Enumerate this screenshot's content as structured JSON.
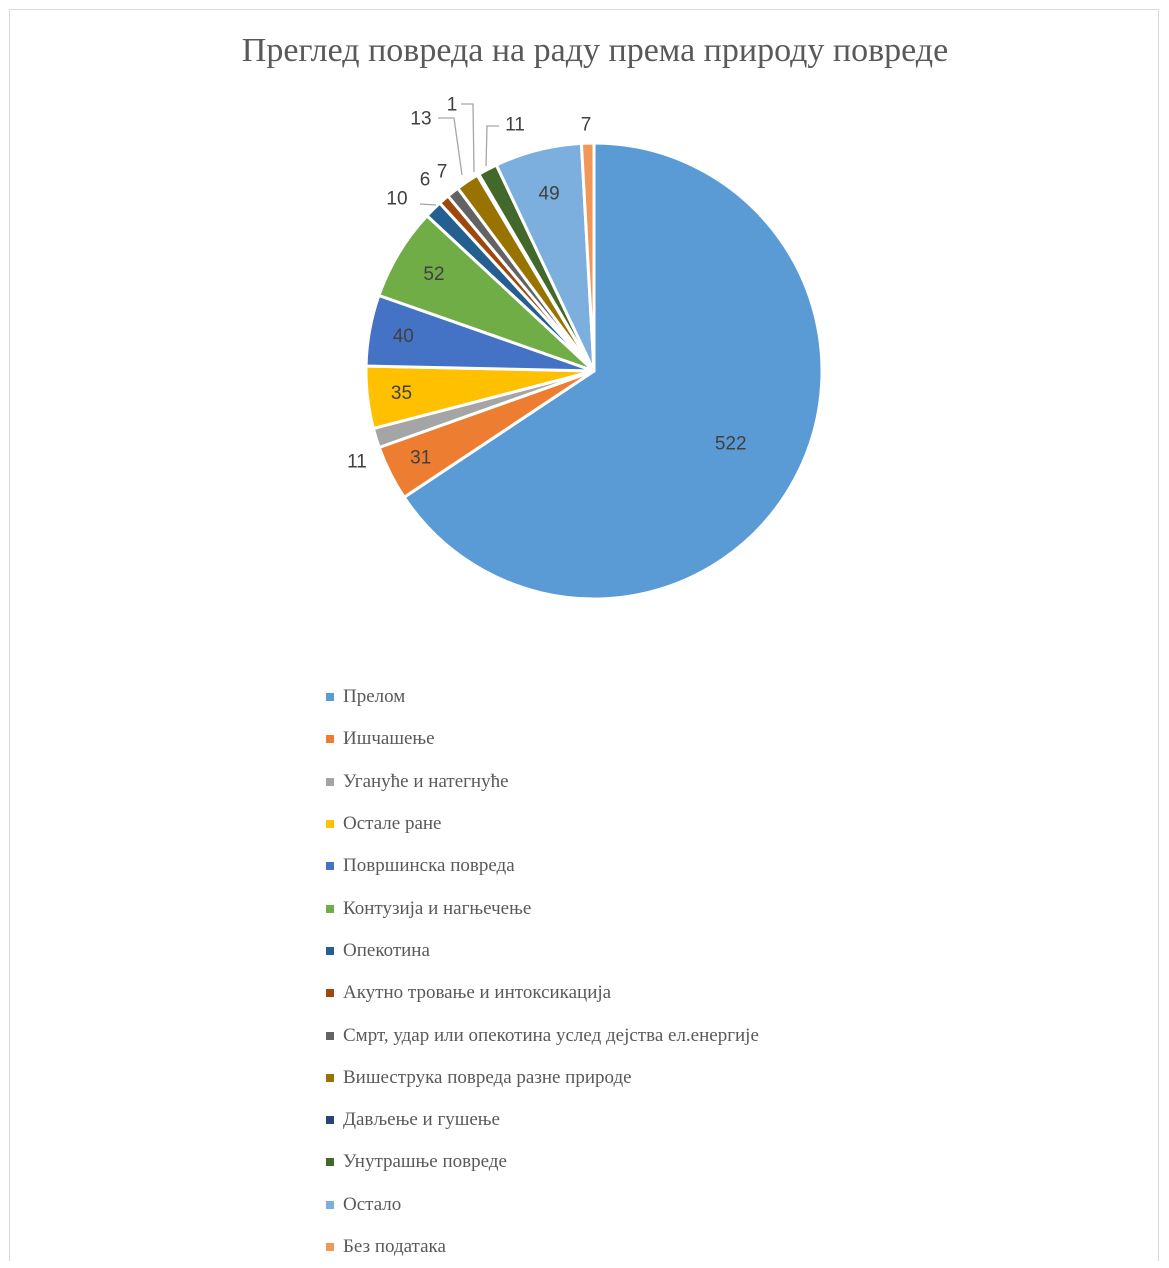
{
  "chart_data": {
    "type": "pie",
    "title": "Преглед повреда на раду према природу повреде",
    "slices": [
      {
        "label": "Прелом",
        "value": 522,
        "color": "#5B9BD5"
      },
      {
        "label": "Ишчашење",
        "value": 31,
        "color": "#ED7D31"
      },
      {
        "label": "Угануће и натегнуће",
        "value": 11,
        "color": "#A5A5A5"
      },
      {
        "label": "Остале ране",
        "value": 35,
        "color": "#FFC000"
      },
      {
        "label": "Површинска повреда",
        "value": 40,
        "color": "#4472C4"
      },
      {
        "label": "Контузија и нагњечење",
        "value": 52,
        "color": "#70AD47"
      },
      {
        "label": "Опекотина",
        "value": 10,
        "color": "#255E91"
      },
      {
        "label": "Акутно тровање и интоксикација",
        "value": 6,
        "color": "#9E480E"
      },
      {
        "label": "Смрт, удар или опекотина услед дејства ел.енергије",
        "value": 7,
        "color": "#636363"
      },
      {
        "label": "Вишеструка повреда разне природе",
        "value": 13,
        "color": "#997300"
      },
      {
        "label": "Дављење и гушење",
        "value": 1,
        "color": "#264478"
      },
      {
        "label": "Унутрашње повреде",
        "value": 11,
        "color": "#43682B"
      },
      {
        "label": "Остало",
        "value": 49,
        "color": "#7CAFDD"
      },
      {
        "label": "Без података",
        "value": 7,
        "color": "#F1975A"
      }
    ],
    "legend_position": "bottom"
  }
}
